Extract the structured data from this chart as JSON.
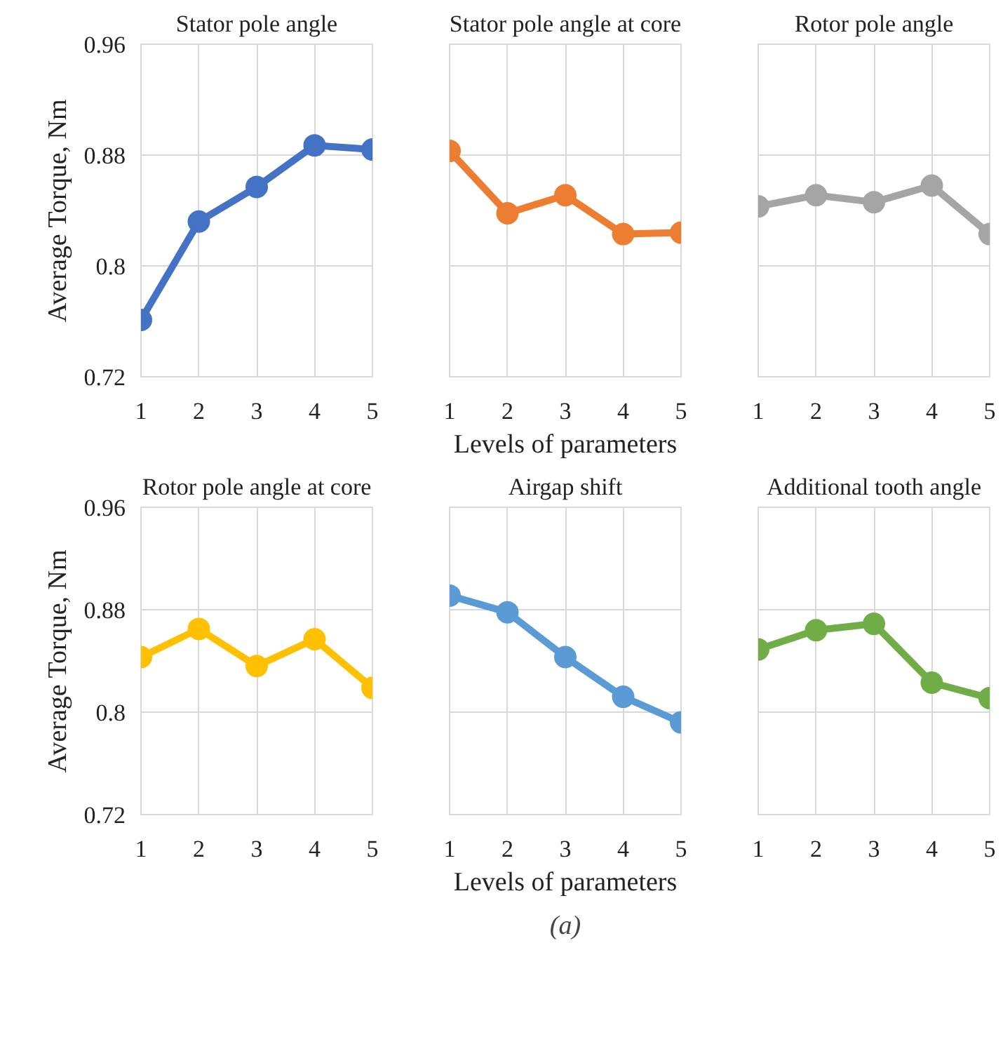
{
  "chart_data": [
    {
      "type": "line",
      "title": "Stator pole angle",
      "ylabel": "Average Torque, Nm",
      "x": [
        1,
        2,
        3,
        4,
        5
      ],
      "xlim": [
        1,
        5
      ],
      "xticks": [
        1,
        2,
        3,
        4,
        5
      ],
      "ylim": [
        0.72,
        0.96
      ],
      "yticks": [
        0.72,
        0.8,
        0.88,
        0.96
      ],
      "grid": true,
      "marker": "circle",
      "line_style": "solid",
      "series": [
        {
          "color": "#4472c4",
          "values": [
            0.761,
            0.832,
            0.857,
            0.887,
            0.884
          ]
        }
      ]
    },
    {
      "type": "line",
      "title": "Stator pole angle at core",
      "xlabel": "Levels of parameters",
      "x": [
        1,
        2,
        3,
        4,
        5
      ],
      "xlim": [
        1,
        5
      ],
      "xticks": [
        1,
        2,
        3,
        4,
        5
      ],
      "ylim": [
        0.72,
        0.96
      ],
      "yticks": [
        0.72,
        0.8,
        0.88,
        0.96
      ],
      "grid": true,
      "marker": "circle",
      "line_style": "solid",
      "tick_labels": "x",
      "series": [
        {
          "color": "#ed7d31",
          "values": [
            0.883,
            0.838,
            0.851,
            0.823,
            0.824
          ]
        }
      ]
    },
    {
      "type": "line",
      "title": "Rotor pole angle",
      "x": [
        1,
        2,
        3,
        4,
        5
      ],
      "xlim": [
        1,
        5
      ],
      "xticks": [
        1,
        2,
        3,
        4,
        5
      ],
      "ylim": [
        0.72,
        0.96
      ],
      "yticks": [
        0.72,
        0.8,
        0.88,
        0.96
      ],
      "grid": true,
      "marker": "circle",
      "line_style": "solid",
      "tick_labels": "x",
      "series": [
        {
          "color": "#a5a5a5",
          "values": [
            0.843,
            0.851,
            0.846,
            0.858,
            0.823
          ]
        }
      ]
    },
    {
      "type": "line",
      "title": "Rotor pole angle at core",
      "ylabel": "Average Torque, Nm",
      "x": [
        1,
        2,
        3,
        4,
        5
      ],
      "xlim": [
        1,
        5
      ],
      "xticks": [
        1,
        2,
        3,
        4,
        5
      ],
      "ylim": [
        0.72,
        0.96
      ],
      "yticks": [
        0.72,
        0.8,
        0.88,
        0.96
      ],
      "grid": true,
      "marker": "circle",
      "line_style": "solid",
      "series": [
        {
          "color": "#ffc000",
          "values": [
            0.843,
            0.865,
            0.836,
            0.857,
            0.819
          ]
        }
      ]
    },
    {
      "type": "line",
      "title": "Airgap shift",
      "xlabel": "Levels of parameters",
      "annotations": [
        "(a)"
      ],
      "x": [
        1,
        2,
        3,
        4,
        5
      ],
      "xlim": [
        1,
        5
      ],
      "xticks": [
        1,
        2,
        3,
        4,
        5
      ],
      "ylim": [
        0.72,
        0.96
      ],
      "yticks": [
        0.72,
        0.8,
        0.88,
        0.96
      ],
      "grid": true,
      "marker": "circle",
      "line_style": "solid",
      "tick_labels": "x",
      "series": [
        {
          "color": "#5b9bd5",
          "values": [
            0.891,
            0.878,
            0.843,
            0.812,
            0.792
          ]
        }
      ]
    },
    {
      "type": "line",
      "title": "Additional tooth angle",
      "x": [
        1,
        2,
        3,
        4,
        5
      ],
      "xlim": [
        1,
        5
      ],
      "xticks": [
        1,
        2,
        3,
        4,
        5
      ],
      "ylim": [
        0.72,
        0.96
      ],
      "yticks": [
        0.72,
        0.8,
        0.88,
        0.96
      ],
      "grid": true,
      "marker": "circle",
      "line_style": "solid",
      "tick_labels": "x",
      "series": [
        {
          "color": "#70ad47",
          "values": [
            0.849,
            0.864,
            0.869,
            0.823,
            0.811
          ]
        }
      ]
    }
  ]
}
